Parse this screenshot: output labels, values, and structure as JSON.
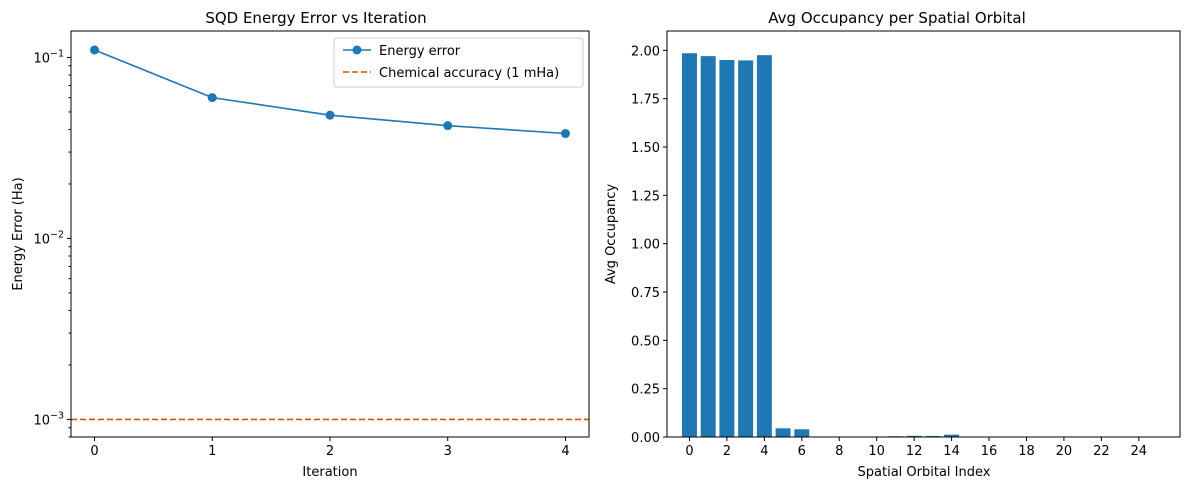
{
  "chart_data": [
    {
      "type": "line",
      "title": "SQD Energy Error vs Iteration",
      "xlabel": "Iteration",
      "ylabel": "Energy Error (Ha)",
      "yscale": "log",
      "ylim": [
        0.0008,
        0.14
      ],
      "xlim": [
        -0.2,
        4.2
      ],
      "x": [
        0,
        1,
        2,
        3,
        4
      ],
      "x_ticks": [
        "0",
        "1",
        "2",
        "3",
        "4"
      ],
      "y_ticks": [
        {
          "value": 0.1,
          "base": "10",
          "exp": "−1"
        },
        {
          "value": 0.01,
          "base": "10",
          "exp": "−2"
        },
        {
          "value": 0.001,
          "base": "10",
          "exp": "−3"
        }
      ],
      "series": [
        {
          "name": "Energy error",
          "values": [
            0.11,
            0.06,
            0.048,
            0.042,
            0.038
          ],
          "color": "#1f77b4",
          "marker": "circle"
        }
      ],
      "reference_line": {
        "name": "Chemical accuracy (1 mHa)",
        "y": 0.001,
        "color": "#d35400",
        "style": "dashed"
      },
      "legend_position": "top-right",
      "grid": false
    },
    {
      "type": "bar",
      "title": "Avg Occupancy per Spatial Orbital",
      "xlabel": "Spatial Orbital Index",
      "ylabel": "Avg Occupancy",
      "ylim": [
        0,
        2.1
      ],
      "xlim": [
        -1.2,
        26.2
      ],
      "categories": [
        0,
        1,
        2,
        3,
        4,
        5,
        6,
        7,
        8,
        9,
        10,
        11,
        12,
        13,
        14,
        15,
        16,
        17,
        18,
        19,
        20,
        21,
        22,
        23,
        24,
        25
      ],
      "values": [
        1.985,
        1.97,
        1.95,
        1.948,
        1.975,
        0.045,
        0.04,
        0,
        0,
        0,
        0,
        0.004,
        0.006,
        0.005,
        0.012,
        0,
        0,
        0,
        0,
        0,
        0,
        0,
        0,
        0,
        0,
        0
      ],
      "x_ticks": [
        "0",
        "2",
        "4",
        "6",
        "8",
        "10",
        "12",
        "14",
        "16",
        "18",
        "20",
        "22",
        "24"
      ],
      "y_ticks": [
        "0.00",
        "0.25",
        "0.50",
        "0.75",
        "1.00",
        "1.25",
        "1.50",
        "1.75",
        "2.00"
      ],
      "color": "#1f77b4",
      "grid": false
    }
  ]
}
